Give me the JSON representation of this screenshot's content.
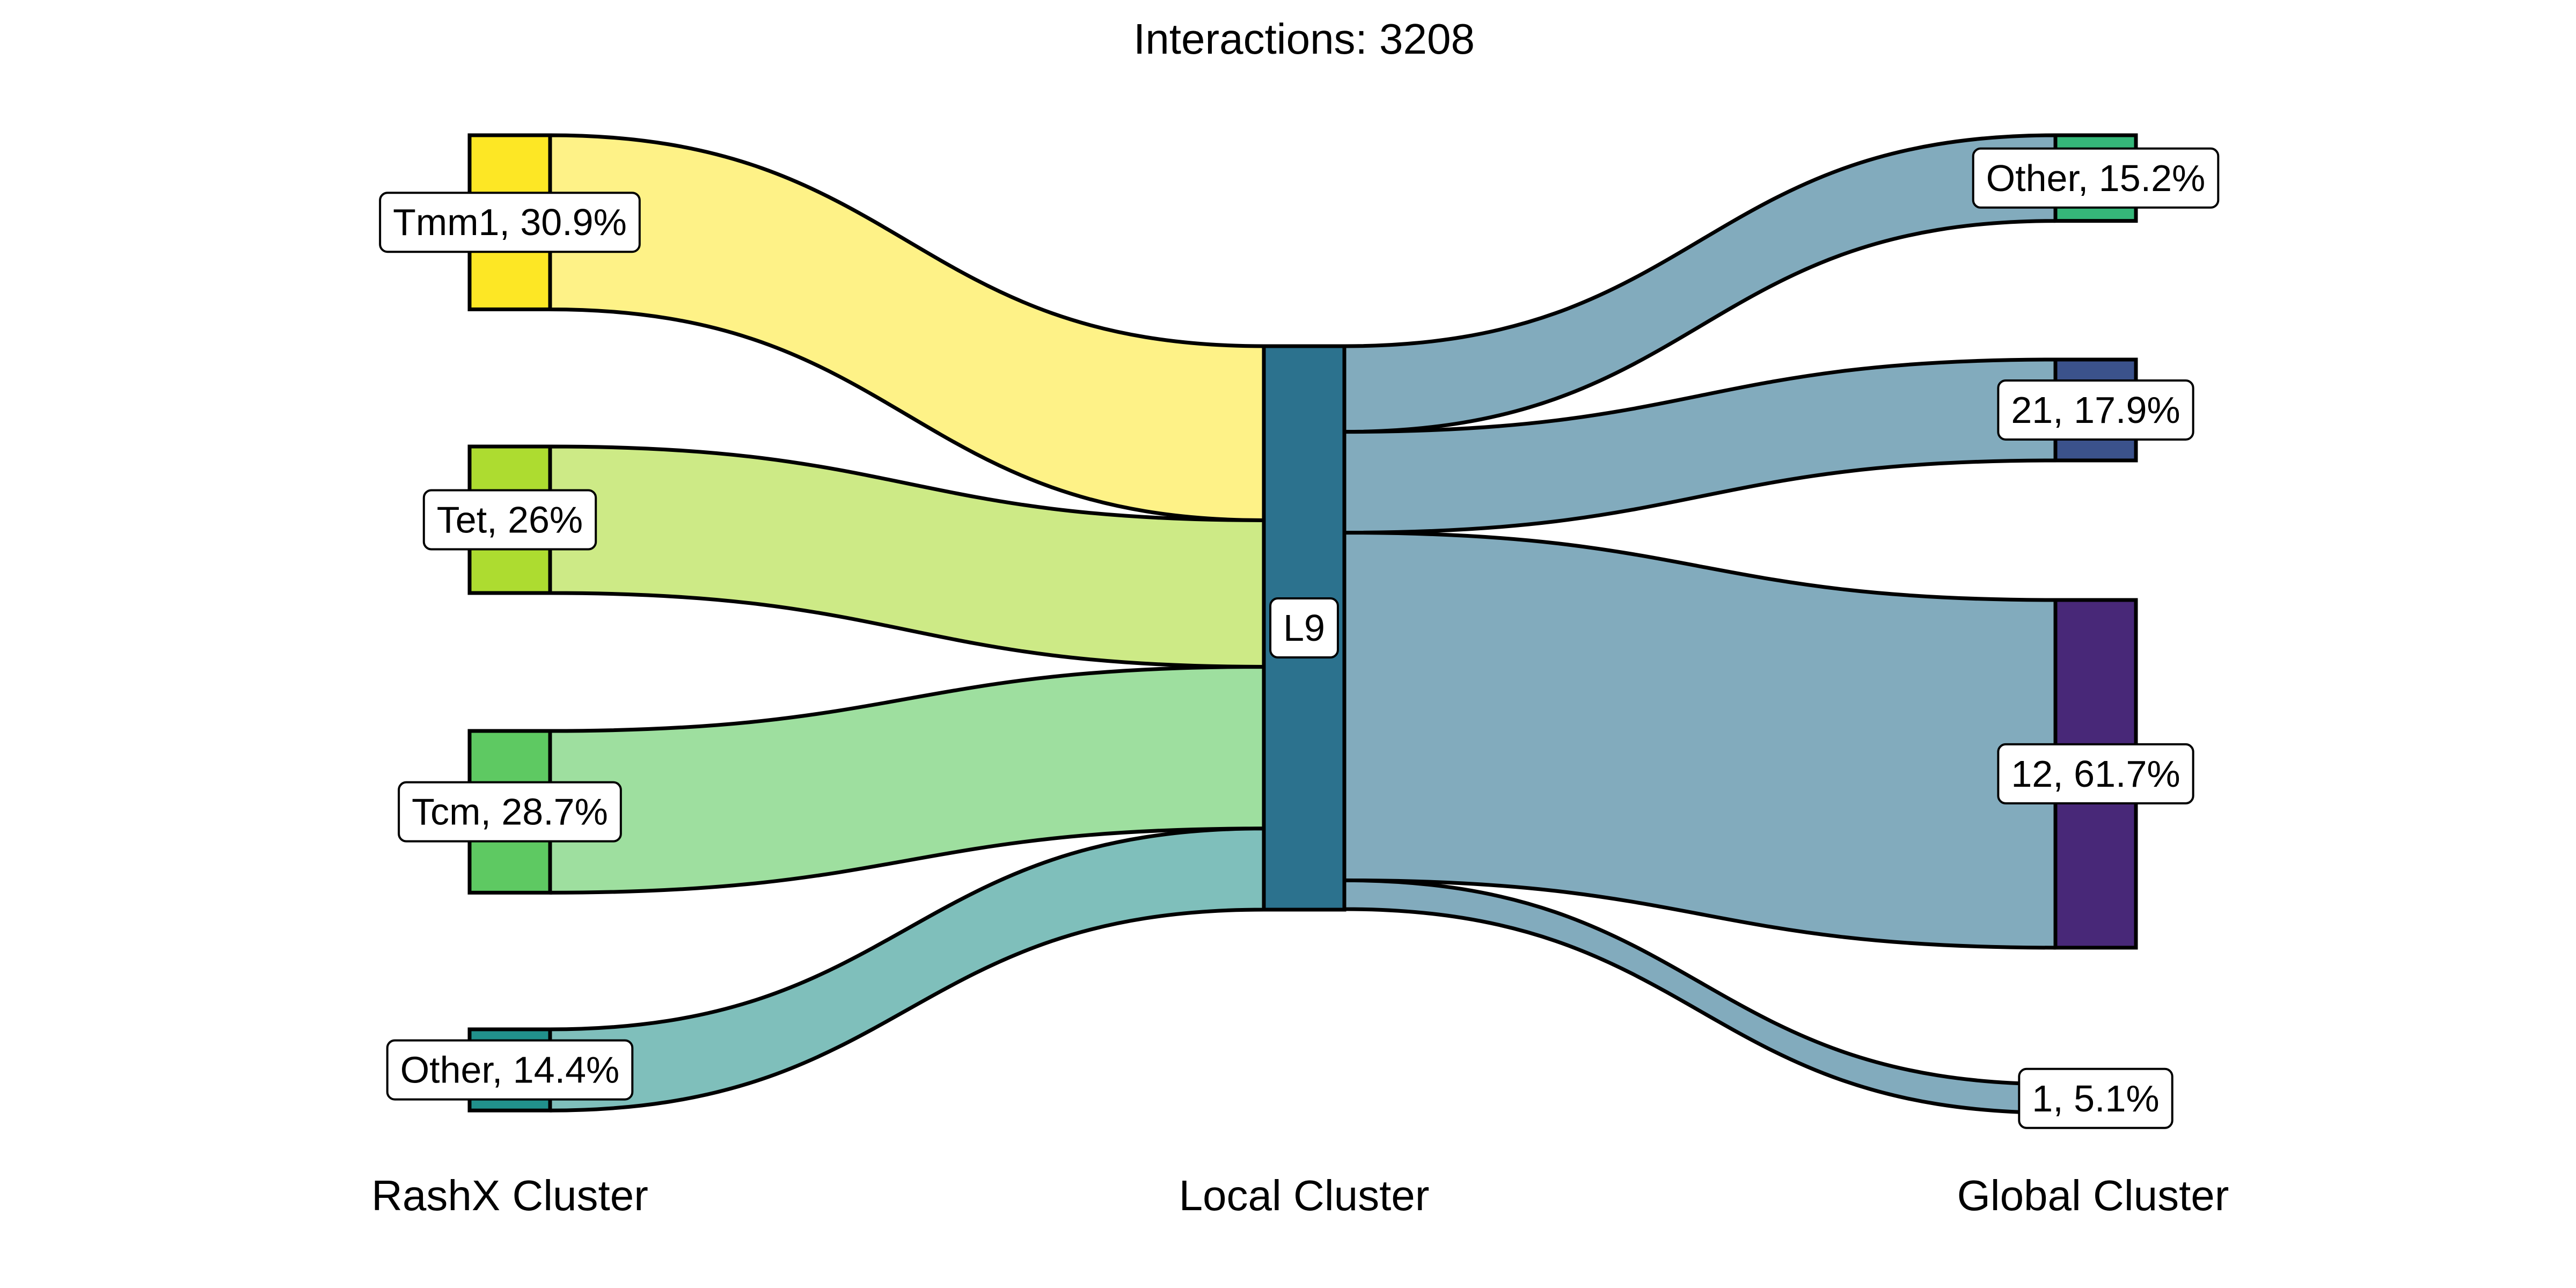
{
  "title": "Interactions: 3208",
  "columns": [
    {
      "key": "rashx",
      "label": "RashX Cluster"
    },
    {
      "key": "local",
      "label": "Local Cluster"
    },
    {
      "key": "global",
      "label": "Global Cluster"
    }
  ],
  "nodes": {
    "rashx": [
      {
        "id": "tmm1",
        "label": "Tmm1, 30.9%",
        "fraction": 0.309,
        "color": "#fde725"
      },
      {
        "id": "tet",
        "label": "Tet, 26%",
        "fraction": 0.26,
        "color": "#addc30"
      },
      {
        "id": "tcm",
        "label": "Tcm, 28.7%",
        "fraction": 0.287,
        "color": "#5ec962"
      },
      {
        "id": "other-left",
        "label": "Other, 14.4%",
        "fraction": 0.144,
        "color": "#21918c"
      }
    ],
    "local": [
      {
        "id": "l9",
        "label": "L9",
        "fraction": 1.0,
        "color": "#2c728e"
      }
    ],
    "global": [
      {
        "id": "other-right",
        "label": "Other, 15.2%",
        "fraction": 0.152,
        "color": "#35b779"
      },
      {
        "id": "g21",
        "label": "21, 17.9%",
        "fraction": 0.179,
        "color": "#3b528b"
      },
      {
        "id": "g12",
        "label": "12, 61.7%",
        "fraction": 0.617,
        "color": "#482878"
      },
      {
        "id": "g1",
        "label": "1, 5.1%",
        "fraction": 0.051,
        "color": "#440154"
      }
    ]
  },
  "flows": {
    "left": [
      {
        "from": "tmm1",
        "to": "l9",
        "fraction": 0.309,
        "color": "#fef287"
      },
      {
        "from": "tet",
        "to": "l9",
        "fraction": 0.26,
        "color": "#cdea86"
      },
      {
        "from": "tcm",
        "to": "l9",
        "fraction": 0.287,
        "color": "#9edf9f"
      },
      {
        "from": "other-left",
        "to": "l9",
        "fraction": 0.144,
        "color": "#7fbfbb"
      }
    ],
    "right": [
      {
        "from": "l9",
        "to": "other-right",
        "fraction": 0.152,
        "color": "#82abbd"
      },
      {
        "from": "l9",
        "to": "g21",
        "fraction": 0.179,
        "color": "#82abbd"
      },
      {
        "from": "l9",
        "to": "g12",
        "fraction": 0.617,
        "color": "#82abbd"
      },
      {
        "from": "l9",
        "to": "g1",
        "fraction": 0.051,
        "color": "#82abbd"
      }
    ]
  }
}
